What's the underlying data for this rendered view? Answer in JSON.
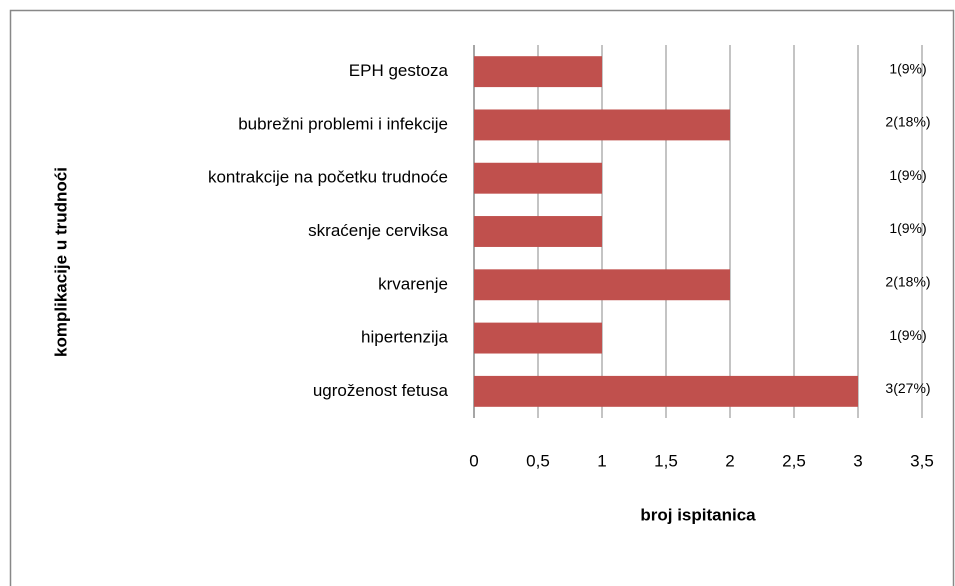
{
  "chart_data": {
    "type": "barh",
    "x_label": "broj ispitanica",
    "y_label": "komplikacije u trudnoći",
    "categories": [
      "EPH gestoza",
      "bubrežni problemi i infekcije",
      "kontrakcije na početku trudnoće",
      "skraćenje cerviksa",
      "krvarenje",
      "hipertenzija",
      "ugroženost fetusa"
    ],
    "values": [
      1,
      2,
      1,
      1,
      2,
      1,
      3
    ],
    "value_labels": [
      "1(9%)",
      "2(18%)",
      "1(9%)",
      "1(9%)",
      "2(18%)",
      "1(9%)",
      "3(27%)"
    ],
    "color": "#c0504d",
    "xlim": [
      0,
      3.5
    ],
    "xticks": [
      0,
      {
        "value": 0.5,
        "label": "0,5"
      },
      1,
      {
        "value": 1.5,
        "label": "1,5"
      },
      2,
      {
        "value": 2.5,
        "label": "2,5"
      },
      3,
      {
        "value": 3.5,
        "label": "3,5"
      }
    ],
    "grid": true
  }
}
